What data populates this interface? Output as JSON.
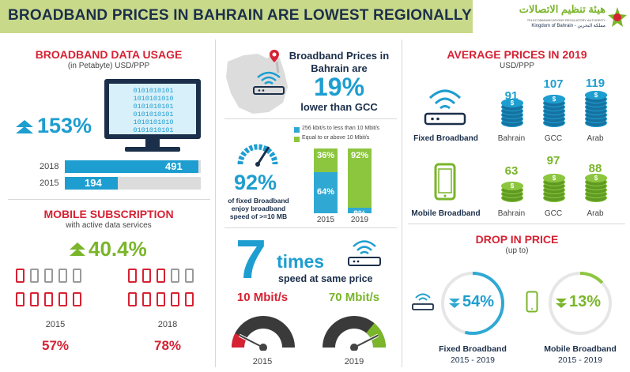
{
  "header": {
    "title": "BROADBAND PRICES IN BAHRAIN ARE LOWEST REGIONALLY",
    "logo_arabic": "هيئة تنظيم الاتصالات",
    "logo_english": "TELECOMMUNICATIONS REGULATORY AUTHORITY",
    "logo_kingdom": "Kingdom of Bahrain - مملكة البحرين"
  },
  "usage": {
    "title": "BROADBAND DATA USAGE",
    "subtitle": "(in Petabyte) USD/PPP",
    "growth": "153%",
    "screen_bits": [
      "0101010101",
      "1010101010",
      "0101010101",
      "0101010101",
      "1010101010",
      "0101010101"
    ],
    "bars": [
      {
        "year": "2018",
        "value": 491,
        "label": "491"
      },
      {
        "year": "2015",
        "value": 194,
        "label": "194"
      }
    ]
  },
  "mobile_sub": {
    "title": "MOBILE SUBSCRIPTION",
    "subtitle": "with active data services",
    "growth": "40.4%",
    "groups": [
      {
        "year": "2015",
        "pct": "57%",
        "fraction": 0.57
      },
      {
        "year": "2018",
        "pct": "78%",
        "fraction": 0.78
      }
    ]
  },
  "prices_box": {
    "line1": "Broadband Prices in",
    "line2": "Bahrain are",
    "pct": "19%",
    "line3": "lower than GCC"
  },
  "speed_share": {
    "pct": "92%",
    "caption": [
      "of fixed Broadband",
      "enjoy broadband",
      "speed of >=10 MB"
    ],
    "legend": [
      {
        "label": "256 kbit/s to less than 10 Mbit/s",
        "color": "#2fa9d4"
      },
      {
        "label": "Equal to or above 10 Mbit/s",
        "color": "#8cc63f"
      }
    ],
    "columns": [
      {
        "year": "2015",
        "top": "36%",
        "bottom": "64%",
        "top_frac": 0.36,
        "top_color": "#8cc63f",
        "bottom_color": "#2fa9d4"
      },
      {
        "year": "2019",
        "top": "92%",
        "bottom": "8%",
        "top_frac": 0.92,
        "top_color": "#8cc63f",
        "bottom_color": "#2fa9d4"
      }
    ]
  },
  "speed_price": {
    "big": "7",
    "times": "times",
    "sub": "speed at same price",
    "gauges": [
      {
        "speed": "10 Mbit/s",
        "year": "2015",
        "level": 0.15
      },
      {
        "speed": "70 Mbit/s",
        "year": "2019",
        "level": 0.85
      }
    ]
  },
  "avg_prices": {
    "title": "AVERAGE PRICES IN 2019",
    "subtitle": "USD/PPP",
    "rows": [
      {
        "label": "Fixed Broadband",
        "items": [
          {
            "name": "Bahrain",
            "value": "91"
          },
          {
            "name": "GCC",
            "value": "107"
          },
          {
            "name": "Arab",
            "value": "119"
          }
        ]
      },
      {
        "label": "Mobile Broadband",
        "items": [
          {
            "name": "Bahrain",
            "value": "63"
          },
          {
            "name": "GCC",
            "value": "97"
          },
          {
            "name": "Arab",
            "value": "88"
          }
        ]
      }
    ]
  },
  "drop": {
    "title": "DROP IN PRICE",
    "subtitle": "(up to)",
    "items": [
      {
        "pct": "54%",
        "fraction": 0.54,
        "label": "Fixed Broadband",
        "period": "2015 - 2019",
        "color": "#2fa9d4"
      },
      {
        "pct": "13%",
        "fraction": 0.13,
        "label": "Mobile Broadband",
        "period": "2015 - 2019",
        "color": "#8cc63f"
      }
    ]
  },
  "colors": {
    "red": "#d62233",
    "blue": "#1e9ed0",
    "green": "#7ab52a",
    "navy": "#1b2f4a",
    "title_bg": "#c9d98a"
  }
}
